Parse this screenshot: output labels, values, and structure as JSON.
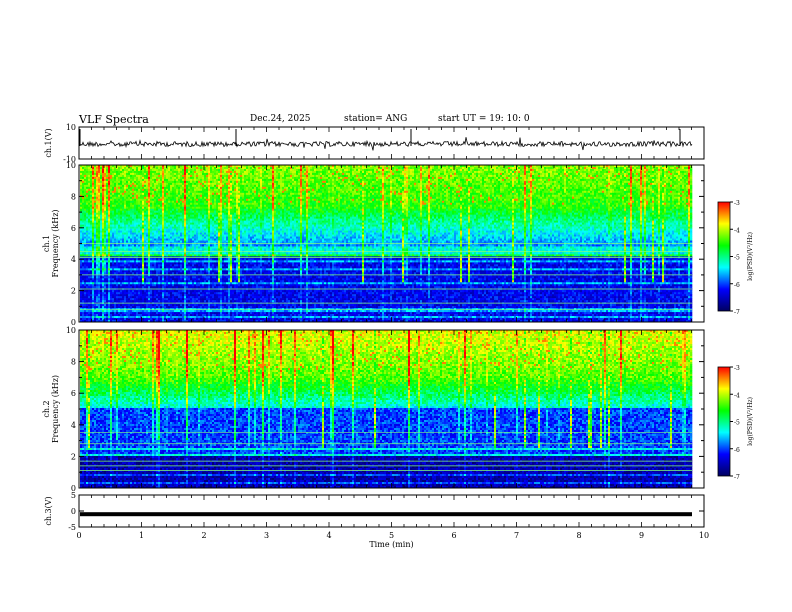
{
  "header": {
    "title": "VLF Spectra",
    "date": "Dec.24, 2025",
    "station": "station= ANG",
    "start": "start  UT =   19: 10: 0"
  },
  "chart_data": [
    {
      "type": "line",
      "panel": "waveform-ch1",
      "ylabel": "ch.1(V)",
      "ylim": [
        -10,
        10
      ],
      "yticks": [
        "10",
        "-10"
      ],
      "xlim": [
        0,
        10
      ]
    },
    {
      "type": "heatmap",
      "panel": "spectrogram-ch1",
      "ylabel_line1": "ch.1",
      "ylabel_line2": "Frequency (kHz)",
      "ylim": [
        0,
        10
      ],
      "yticks": [
        "0",
        "2",
        "4",
        "6",
        "8",
        "10"
      ],
      "xlim": [
        0,
        10
      ],
      "colorbar": {
        "label": "log(PSD)(V²/Hz)",
        "ticks": [
          "-3",
          "-4",
          "-5",
          "-6",
          "-7"
        ],
        "range": [
          -7,
          -3
        ]
      }
    },
    {
      "type": "heatmap",
      "panel": "spectrogram-ch2",
      "ylabel_line1": "ch.2",
      "ylabel_line2": "Frequency (kHz)",
      "ylim": [
        0,
        10
      ],
      "yticks": [
        "0",
        "2",
        "4",
        "6",
        "8",
        "10"
      ],
      "xlim": [
        0,
        10
      ],
      "colorbar": {
        "label": "log(PSD)(V²/Hz)",
        "ticks": [
          "-3",
          "-4",
          "-5",
          "-6",
          "-7"
        ],
        "range": [
          -7,
          -3
        ]
      }
    },
    {
      "type": "line",
      "panel": "waveform-ch3",
      "ylabel": "ch.3(V)",
      "ylim": [
        -5,
        5
      ],
      "yticks": [
        "5",
        "0",
        "-5"
      ],
      "xlim": [
        0,
        10
      ],
      "xlabel": "Time (min)",
      "xticks": [
        "0",
        "1",
        "2",
        "3",
        "4",
        "5",
        "6",
        "7",
        "8",
        "9",
        "10"
      ]
    }
  ],
  "colors": {
    "axis": "#000000",
    "colormap": [
      "#000060",
      "#0000ff",
      "#00ffff",
      "#00ff00",
      "#ffff00",
      "#ff0000"
    ]
  }
}
